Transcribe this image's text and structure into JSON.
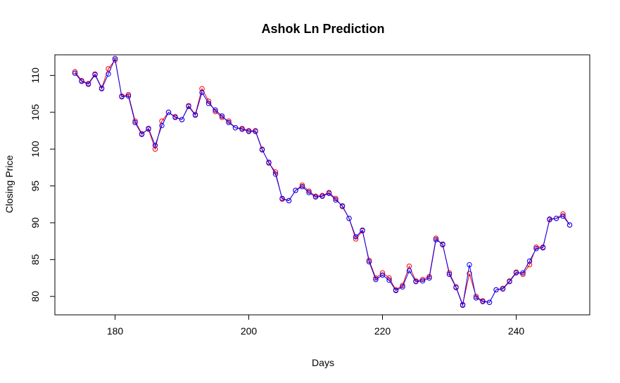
{
  "chart_data": {
    "type": "line",
    "title": "Ashok Ln Prediction",
    "xlabel": "Days",
    "ylabel": "Closing Price",
    "xlim": [
      171,
      251
    ],
    "ylim": [
      77.5,
      112.8
    ],
    "x_ticks": [
      180,
      200,
      220,
      240
    ],
    "y_ticks": [
      80,
      85,
      90,
      95,
      100,
      105,
      110
    ],
    "grid": false,
    "colors": {
      "actual": "#ff0000",
      "predicted": "#0000ff"
    },
    "x": [
      174,
      175,
      176,
      177,
      178,
      179,
      180,
      181,
      182,
      183,
      184,
      185,
      186,
      187,
      188,
      189,
      190,
      191,
      192,
      193,
      194,
      195,
      196,
      197,
      198,
      199,
      200,
      201,
      202,
      203,
      204,
      205,
      206,
      207,
      208,
      209,
      210,
      211,
      212,
      213,
      214,
      215,
      216,
      217,
      218,
      219,
      220,
      221,
      222,
      223,
      224,
      225,
      226,
      227,
      228,
      229,
      230,
      231,
      232,
      233,
      234,
      235,
      236,
      237,
      238,
      239,
      240,
      241,
      242,
      243,
      244,
      245,
      246,
      247,
      248
    ],
    "series": [
      {
        "values": [
          110.5,
          109.3,
          108.9,
          110.2,
          108.3,
          110.9,
          112.1,
          107.2,
          107.4,
          103.8,
          102.1,
          102.7,
          100.0,
          103.8,
          105.0,
          104.4,
          104.0,
          105.9,
          104.7,
          108.2,
          106.5,
          105.1,
          104.3,
          103.8,
          102.9,
          102.8,
          102.5,
          102.5,
          100.0,
          98.1,
          96.9,
          93.2,
          93.0,
          94.4,
          95.1,
          94.3,
          93.6,
          93.7,
          94.1,
          93.3,
          92.2,
          90.6,
          87.8,
          88.9,
          84.9,
          82.5,
          83.2,
          82.5,
          80.9,
          81.5,
          84.1,
          82.1,
          82.3,
          82.7,
          87.9,
          87.0,
          83.2,
          81.3,
          78.9,
          83.1,
          80.0,
          79.4,
          79.2,
          80.9,
          81.1,
          82.1,
          83.3,
          83.0,
          84.3,
          86.7,
          86.7,
          90.4,
          90.6,
          91.2,
          89.7
        ]
      },
      {
        "values": [
          110.3,
          109.2,
          108.8,
          110.1,
          108.2,
          110.2,
          112.3,
          107.1,
          107.2,
          103.6,
          102.0,
          102.8,
          100.5,
          103.2,
          105.0,
          104.3,
          104.0,
          105.8,
          104.6,
          107.7,
          106.2,
          105.3,
          104.5,
          103.6,
          102.9,
          102.7,
          102.4,
          102.4,
          99.9,
          98.2,
          96.6,
          93.3,
          93.0,
          94.4,
          94.9,
          94.1,
          93.5,
          93.6,
          94.0,
          93.1,
          92.3,
          90.6,
          88.1,
          89.0,
          84.7,
          82.3,
          82.9,
          82.2,
          80.8,
          81.3,
          83.5,
          82.0,
          82.1,
          82.5,
          87.7,
          87.1,
          83.0,
          81.2,
          78.8,
          84.3,
          79.8,
          79.3,
          79.2,
          80.9,
          81.0,
          82.0,
          83.2,
          83.2,
          84.8,
          86.5,
          86.6,
          90.5,
          90.6,
          90.9,
          89.7
        ]
      }
    ]
  }
}
